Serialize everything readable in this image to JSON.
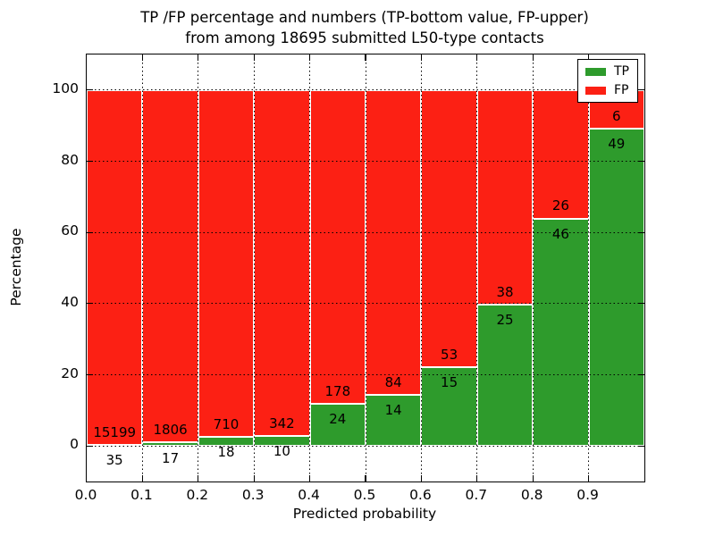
{
  "figure": {
    "title_line1": "TP /FP percentage and numbers (TP-bottom value, FP-upper)",
    "title_line2": "from among 18695 submitted L50-type contacts"
  },
  "chart_data": {
    "type": "bar",
    "stacked": true,
    "title": "TP /FP percentage and numbers (TP-bottom value, FP-upper) from among 18695 submitted L50-type contacts",
    "xlabel": "Predicted probability",
    "ylabel": "Percentage",
    "xlim": [
      0.0,
      1.0
    ],
    "ylim": [
      -10,
      110
    ],
    "bin_width": 0.1,
    "bin_starts": [
      0.0,
      0.1,
      0.2,
      0.3,
      0.4,
      0.5,
      0.6,
      0.7,
      0.8,
      0.9
    ],
    "xtick_labels": [
      "0.0",
      "0.1",
      "0.2",
      "0.3",
      "0.4",
      "0.5",
      "0.6",
      "0.7",
      "0.8",
      "0.9"
    ],
    "ytick_values": [
      0,
      20,
      40,
      60,
      80,
      100
    ],
    "ytick_labels": [
      "0",
      "20",
      "40",
      "60",
      "80",
      "100"
    ],
    "grid": "dotted",
    "series": [
      {
        "name": "TP",
        "color": "#2e9b2c",
        "counts": [
          35,
          17,
          18,
          10,
          24,
          14,
          15,
          25,
          46,
          49
        ],
        "pct": [
          0.23,
          0.93,
          2.47,
          2.84,
          11.88,
          14.29,
          22.06,
          39.68,
          63.89,
          89.09
        ]
      },
      {
        "name": "FP",
        "color": "#fc2014",
        "counts": [
          15199,
          1806,
          710,
          342,
          178,
          84,
          53,
          38,
          26,
          6
        ],
        "pct": [
          99.77,
          99.07,
          97.53,
          97.16,
          88.12,
          85.71,
          77.94,
          60.32,
          36.11,
          10.91
        ]
      }
    ],
    "legend": {
      "position": "upper right",
      "entries": [
        {
          "label": "TP",
          "color": "#2e9b2c"
        },
        {
          "label": "FP",
          "color": "#fc2014"
        }
      ]
    }
  }
}
